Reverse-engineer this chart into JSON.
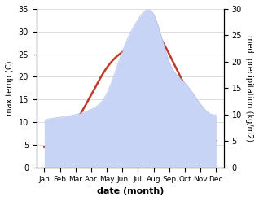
{
  "months": [
    "Jan",
    "Feb",
    "Mar",
    "Apr",
    "May",
    "Jun",
    "Jul",
    "Aug",
    "Sep",
    "Oct",
    "Nov",
    "Dec"
  ],
  "month_x": [
    1,
    2,
    3,
    4,
    5,
    6,
    7,
    8,
    9,
    10,
    11,
    12
  ],
  "temperature": [
    4.5,
    5.5,
    10.0,
    16.0,
    22.0,
    25.5,
    28.0,
    30.0,
    25.0,
    18.0,
    11.0,
    6.0
  ],
  "precipitation": [
    9.0,
    9.5,
    10.0,
    11.0,
    14.0,
    22.0,
    28.0,
    29.0,
    20.0,
    16.0,
    12.0,
    10.0
  ],
  "temp_color": "#c0392b",
  "precip_fill_color": "#c8d4f5",
  "precip_edge_color": "#b0c0e8",
  "temp_ylim": [
    0,
    35
  ],
  "precip_ylim": [
    0,
    30
  ],
  "temp_yticks": [
    0,
    5,
    10,
    15,
    20,
    25,
    30,
    35
  ],
  "precip_yticks": [
    0,
    5,
    10,
    15,
    20,
    25,
    30
  ],
  "xlabel": "date (month)",
  "ylabel_left": "max temp (C)",
  "ylabel_right": "med. precipitation (kg/m2)",
  "background_color": "#ffffff",
  "grid_color": "#d0d0d0"
}
